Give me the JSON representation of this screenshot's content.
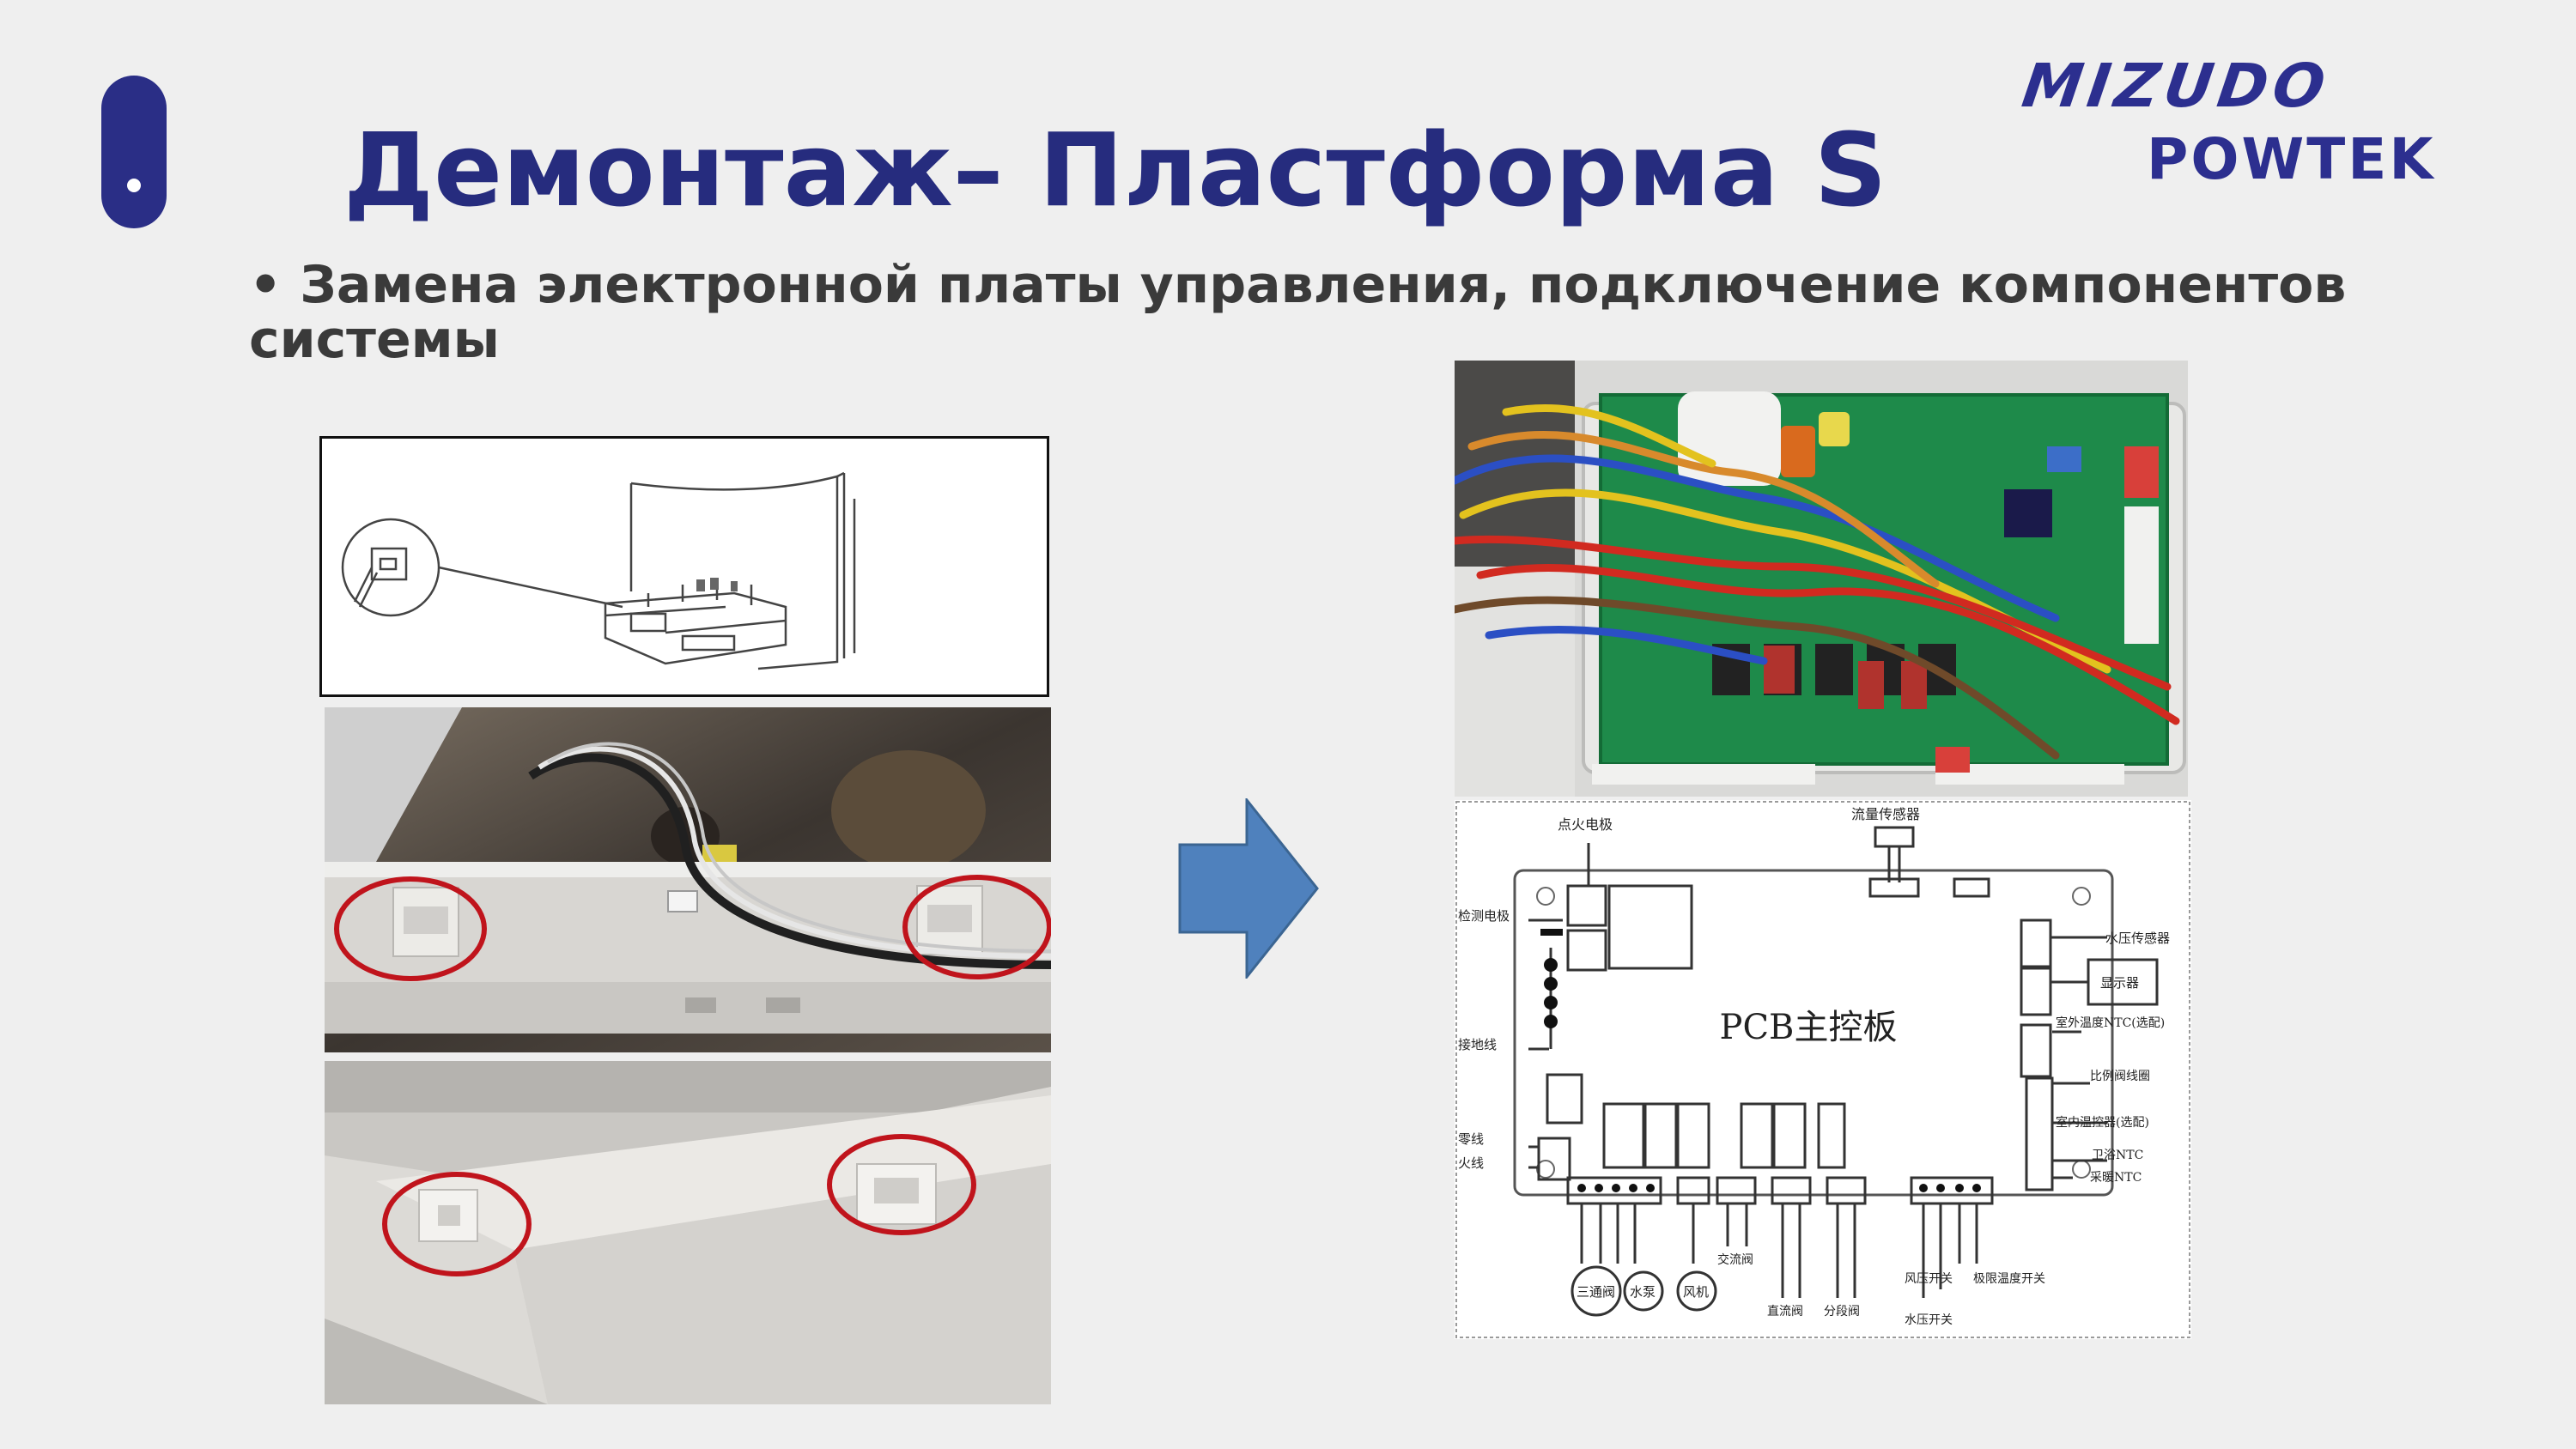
{
  "slide": {
    "title": "Демонтаж– Пластформа S",
    "bullet": "• Замена  электронной платы управления, подключение компонентов системы"
  },
  "brand": {
    "line1": "MIZUDO",
    "line2": "POWTEK",
    "color": "#2c2f8f"
  },
  "colors": {
    "title": "#262c7e",
    "accent": "#2a2e86",
    "arrow": "#4f81bd",
    "highlight_circle": "#c0141c"
  },
  "schematic": {
    "board_label": "PCB主控板",
    "left_labels": [
      "点火电极",
      "检测电极",
      "接地线",
      "零线",
      "火线"
    ],
    "top_label": "流量传感器",
    "right_labels": [
      "水压传感器",
      "显示器",
      "室外温度NTC(选配)",
      "比例阀线圈",
      "室内温控器(选配)",
      "卫浴NTC",
      "采暖NTC"
    ],
    "bottom_labels": [
      "三通阀",
      "水泵",
      "风机",
      "交流阀",
      "直流阀",
      "分段阀",
      "风压开关",
      "水压开关",
      "极限温度开关"
    ]
  },
  "icons": [
    "arrow-right-icon",
    "highlight-circle"
  ]
}
